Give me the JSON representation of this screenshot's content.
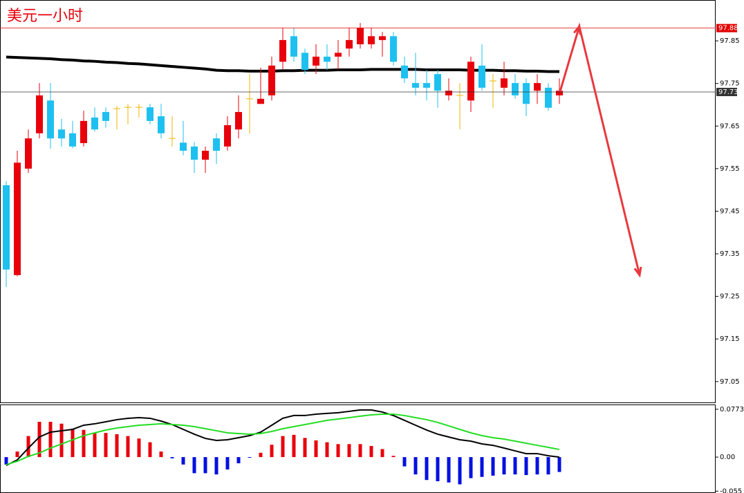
{
  "chart_data": [
    {
      "type": "candlestick",
      "title": "美元一小时",
      "up_color": "#e8000b",
      "down_color": "#1ec0f0",
      "doji_color": "#f0b400",
      "open": [
        97.511,
        97.3,
        97.55,
        97.633,
        97.71,
        97.642,
        97.633,
        97.61,
        97.67,
        97.683,
        97.691,
        97.694,
        97.694,
        97.694,
        97.673,
        97.621,
        97.611,
        97.602,
        97.571,
        97.621,
        97.602,
        97.642,
        97.714,
        97.702,
        97.722,
        97.801,
        97.861,
        97.822,
        97.792,
        97.813,
        97.813,
        97.832,
        97.842,
        97.842,
        97.852,
        97.861,
        97.792,
        97.751,
        97.751,
        97.772,
        97.722,
        97.722,
        97.71,
        97.792,
        97.756,
        97.74,
        97.751,
        97.751,
        97.733,
        97.74,
        97.722
      ],
      "high": [
        97.521,
        97.592,
        97.642,
        97.751,
        97.751,
        97.667,
        97.662,
        97.686,
        97.694,
        97.694,
        97.697,
        97.702,
        97.702,
        97.702,
        97.702,
        97.673,
        97.662,
        97.613,
        97.602,
        97.633,
        97.673,
        97.722,
        97.772,
        97.787,
        97.813,
        97.881,
        97.881,
        97.832,
        97.842,
        97.842,
        97.852,
        97.881,
        97.892,
        97.881,
        97.871,
        97.871,
        97.813,
        97.822,
        97.782,
        97.782,
        97.762,
        97.751,
        97.813,
        97.842,
        97.772,
        97.801,
        97.772,
        97.762,
        97.772,
        97.751,
        97.762
      ],
      "low": [
        97.272,
        97.297,
        97.54,
        97.621,
        97.597,
        97.602,
        97.598,
        97.602,
        97.637,
        97.646,
        97.642,
        97.654,
        97.67,
        97.654,
        97.621,
        97.602,
        97.581,
        97.54,
        97.54,
        97.561,
        97.592,
        97.621,
        97.633,
        97.702,
        97.71,
        97.782,
        97.801,
        97.772,
        97.772,
        97.782,
        97.782,
        97.813,
        97.832,
        97.832,
        97.813,
        97.792,
        97.751,
        97.722,
        97.71,
        97.693,
        97.71,
        97.642,
        97.683,
        97.733,
        97.693,
        97.722,
        97.714,
        97.673,
        97.702,
        97.686,
        97.702
      ],
      "close": [
        97.313,
        97.564,
        97.621,
        97.722,
        97.621,
        97.621,
        97.602,
        97.662,
        97.642,
        97.662,
        97.691,
        97.694,
        97.694,
        97.662,
        97.633,
        97.621,
        97.592,
        97.571,
        97.592,
        97.592,
        97.652,
        97.683,
        97.714,
        97.714,
        97.792,
        97.852,
        97.813,
        97.782,
        97.813,
        97.801,
        97.822,
        97.852,
        97.881,
        97.861,
        97.861,
        97.801,
        97.762,
        97.74,
        97.74,
        97.733,
        97.733,
        97.722,
        97.801,
        97.74,
        97.756,
        97.762,
        97.722,
        97.702,
        97.751,
        97.693,
        97.733
      ],
      "ma": {
        "color": "#000000",
        "values": [
          97.812,
          97.811,
          97.81,
          97.809,
          97.808,
          97.806,
          97.805,
          97.803,
          97.802,
          97.8,
          97.799,
          97.797,
          97.796,
          97.794,
          97.792,
          97.79,
          97.788,
          97.786,
          97.784,
          97.781,
          97.78,
          97.78,
          97.779,
          97.779,
          97.779,
          97.78,
          97.78,
          97.781,
          97.781,
          97.781,
          97.782,
          97.782,
          97.782,
          97.783,
          97.783,
          97.783,
          97.783,
          97.783,
          97.782,
          97.782,
          97.782,
          97.782,
          97.781,
          97.781,
          97.781,
          97.78,
          97.78,
          97.779,
          97.779,
          97.778,
          97.778
        ]
      },
      "ylim": [
        97.001,
        97.946
      ],
      "yticks": [
        97.85,
        97.75,
        97.65,
        97.55,
        97.45,
        97.35,
        97.25,
        97.15,
        97.05
      ],
      "price_lines": [
        {
          "value": 97.88,
          "color": "#e00000"
        },
        {
          "value": 97.73,
          "color": "#333333"
        }
      ],
      "forecast": {
        "color": "#e8383d",
        "x": [
          50.06,
          51.8,
          57.25
        ],
        "values": [
          97.731,
          97.884,
          97.3
        ]
      }
    },
    {
      "type": "macd",
      "up_color": "#e8000b",
      "down_color": "#0010e0",
      "histogram": [
        -0.012,
        0.009,
        0.034,
        0.057,
        0.057,
        0.054,
        0.046,
        0.044,
        0.039,
        0.039,
        0.037,
        0.034,
        0.03,
        0.024,
        0.009,
        -0.002,
        -0.012,
        -0.026,
        -0.026,
        -0.028,
        -0.02,
        -0.01,
        -0.001,
        0.007,
        0.02,
        0.034,
        0.036,
        0.031,
        0.027,
        0.024,
        0.021,
        0.021,
        0.021,
        0.018,
        0.013,
        0.002,
        -0.015,
        -0.028,
        -0.037,
        -0.039,
        -0.041,
        -0.044,
        -0.034,
        -0.032,
        -0.03,
        -0.028,
        -0.028,
        -0.029,
        -0.028,
        -0.028,
        -0.024
      ],
      "lines": [
        {
          "color": "#000000",
          "values": [
            -0.0135,
            -0.0045,
            0.0146,
            0.0325,
            0.0403,
            0.0426,
            0.0448,
            0.0515,
            0.0538,
            0.0571,
            0.0605,
            0.0627,
            0.0638,
            0.0627,
            0.0582,
            0.0526,
            0.0448,
            0.037,
            0.0302,
            0.0269,
            0.028,
            0.0314,
            0.0347,
            0.0403,
            0.0515,
            0.0627,
            0.0672,
            0.0672,
            0.0694,
            0.0706,
            0.0717,
            0.0739,
            0.0762,
            0.0762,
            0.0728,
            0.0672,
            0.0594,
            0.0515,
            0.0437,
            0.037,
            0.0325,
            0.028,
            0.0258,
            0.0213,
            0.019,
            0.0146,
            0.0101,
            0.0056,
            0.0056,
            0.0022,
            0.0
          ]
        },
        {
          "color": "#22dd22",
          "values": [
            -0.0123,
            -0.0067,
            0.0011,
            0.0067,
            0.0146,
            0.0213,
            0.028,
            0.0347,
            0.0392,
            0.0437,
            0.047,
            0.0493,
            0.0515,
            0.0526,
            0.0538,
            0.0526,
            0.0515,
            0.0493,
            0.0459,
            0.0426,
            0.0392,
            0.0381,
            0.037,
            0.0381,
            0.0414,
            0.0459,
            0.0493,
            0.0526,
            0.056,
            0.0594,
            0.0616,
            0.0638,
            0.0661,
            0.0683,
            0.0694,
            0.0694,
            0.0672,
            0.0638,
            0.0605,
            0.056,
            0.0504,
            0.0448,
            0.0392,
            0.0347,
            0.0314,
            0.0291,
            0.0258,
            0.0224,
            0.019,
            0.0157,
            0.0123
          ]
        }
      ],
      "ylim": [
        -0.058,
        0.085
      ],
      "yticks": [
        0.0773,
        {
          "value": 0,
          "label": "0.00"
        },
        -0.055
      ]
    }
  ]
}
